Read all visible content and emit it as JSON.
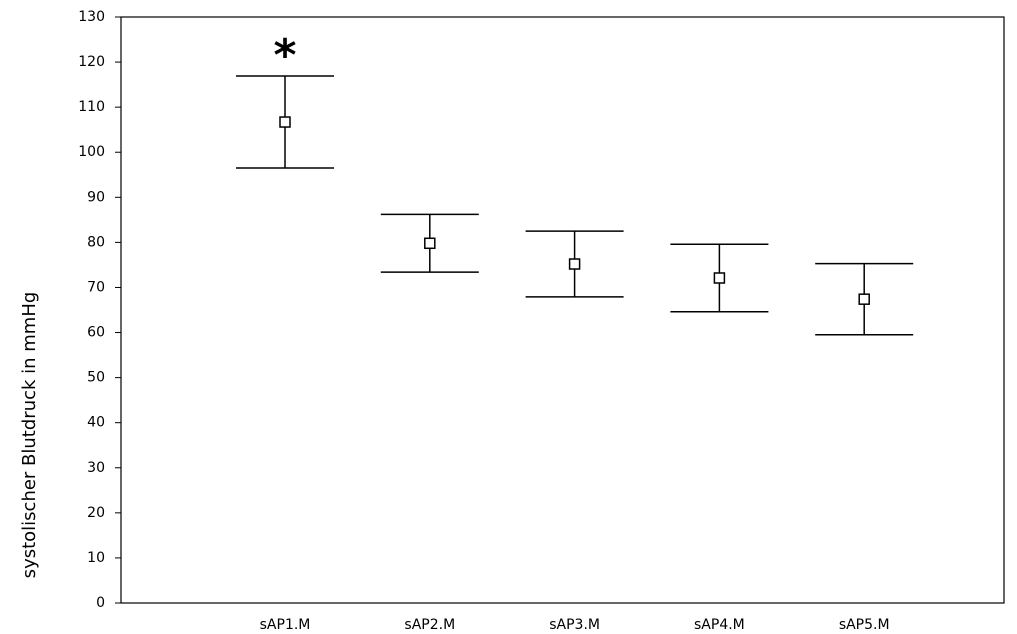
{
  "chart_data": {
    "type": "errorbar",
    "ylabel": "systolischer Blutdruck in mmHg",
    "annotation": "*",
    "categories": [
      "sAP1.M",
      "sAP2.M",
      "sAP3.M",
      "sAP4.M",
      "sAP5.M"
    ],
    "values": [
      106.7,
      79.8,
      75.2,
      72.1,
      67.4
    ],
    "errors": [
      10.2,
      6.4,
      7.3,
      7.5,
      7.9
    ],
    "color": "#000000",
    "ylim": [
      0,
      130
    ],
    "yticks": [
      0,
      10,
      20,
      30,
      40,
      50,
      60,
      70,
      80,
      90,
      100,
      110,
      120,
      130
    ]
  }
}
